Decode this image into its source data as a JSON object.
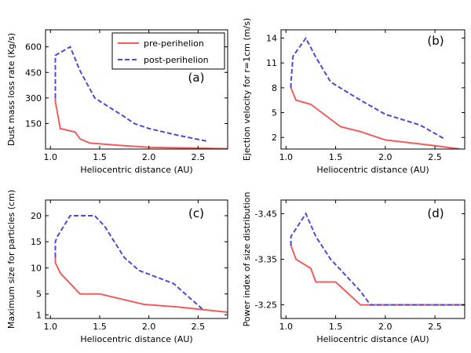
{
  "chart_data": [
    {
      "type": "line",
      "panel": "(a)",
      "xlabel": "Heliocentric distance (AU)",
      "ylabel": "Dust mass loss rate (Kg/s)",
      "xlim": [
        0.95,
        2.8
      ],
      "ylim": [
        0,
        700
      ],
      "xticks": [
        1.0,
        1.5,
        2.0,
        2.5
      ],
      "xtick_labels": [
        "1.0",
        "1.5",
        "2.0",
        "2.5"
      ],
      "yticks": [
        150,
        300,
        450,
        600
      ],
      "ytick_labels": [
        "150",
        "300",
        "450",
        "600"
      ],
      "legend": "top-right",
      "series": [
        {
          "name": "pre-perihelion",
          "color": "#f25c5c",
          "style": "solid",
          "x": [
            1.05,
            1.05,
            1.1,
            1.25,
            1.3,
            1.4,
            1.75,
            2.0,
            2.5,
            2.8
          ],
          "y": [
            310,
            280,
            120,
            100,
            60,
            35,
            20,
            10,
            5,
            2
          ]
        },
        {
          "name": "post-perihelion",
          "color": "#4b4bdb",
          "style": "dashed",
          "x": [
            1.05,
            1.05,
            1.08,
            1.2,
            1.3,
            1.45,
            1.75,
            1.85,
            2.0,
            2.3,
            2.6
          ],
          "y": [
            300,
            550,
            560,
            600,
            460,
            300,
            190,
            150,
            120,
            80,
            45
          ]
        }
      ]
    },
    {
      "type": "line",
      "panel": "(b)",
      "xlabel": "Heliocentric distance (AU)",
      "ylabel": "Ejection velocity for r=1cm (m/s)",
      "xlim": [
        0.95,
        2.8
      ],
      "ylim": [
        0.6,
        15
      ],
      "xticks": [
        1.0,
        1.5,
        2.0,
        2.5
      ],
      "xtick_labels": [
        "1.0",
        "1.5",
        "2.0",
        "2.5"
      ],
      "yticks": [
        2,
        5,
        8,
        11,
        14
      ],
      "ytick_labels": [
        "2",
        "5",
        "8",
        "11",
        "14"
      ],
      "series": [
        {
          "name": "pre-perihelion",
          "color": "#f25c5c",
          "style": "solid",
          "x": [
            1.05,
            1.05,
            1.1,
            1.25,
            1.55,
            1.75,
            2.0,
            2.5,
            2.75
          ],
          "y": [
            8.5,
            8.0,
            6.5,
            6.0,
            3.3,
            2.7,
            1.7,
            1.0,
            0.6
          ]
        },
        {
          "name": "post-perihelion",
          "color": "#4b4bdb",
          "style": "dashed",
          "x": [
            1.05,
            1.05,
            1.07,
            1.2,
            1.3,
            1.45,
            1.75,
            2.0,
            2.35,
            2.6
          ],
          "y": [
            8.0,
            8.5,
            11.8,
            14.0,
            11.7,
            8.7,
            6.5,
            4.8,
            3.5,
            1.8
          ]
        }
      ]
    },
    {
      "type": "line",
      "panel": "(c)",
      "xlabel": "Heliocentric distance (AU)",
      "ylabel": "Maximum size for particles (cm)",
      "xlim": [
        0.95,
        2.8
      ],
      "ylim": [
        0.3,
        23
      ],
      "xticks": [
        1.0,
        1.5,
        2.0,
        2.5
      ],
      "xtick_labels": [
        "1.0",
        "1.5",
        "2.0",
        "2.5"
      ],
      "yticks": [
        1,
        5,
        10,
        15,
        20
      ],
      "ytick_labels": [
        "1",
        "5",
        "10",
        "15",
        "20"
      ],
      "series": [
        {
          "name": "pre-perihelion",
          "color": "#f25c5c",
          "style": "solid",
          "x": [
            1.05,
            1.05,
            1.1,
            1.3,
            1.5,
            1.95,
            2.3,
            2.8
          ],
          "y": [
            13,
            11,
            9,
            5,
            5,
            3,
            2.5,
            1.5
          ]
        },
        {
          "name": "post-perihelion",
          "color": "#4b4bdb",
          "style": "dashed",
          "x": [
            1.05,
            1.05,
            1.07,
            1.2,
            1.45,
            1.55,
            1.75,
            1.9,
            2.25,
            2.55
          ],
          "y": [
            12,
            15,
            16,
            20,
            20,
            18,
            12,
            9.5,
            7,
            2
          ]
        }
      ]
    },
    {
      "type": "line",
      "panel": "(d)",
      "xlabel": "Heliocentric distance (AU)",
      "ylabel": "Power index of size distribution",
      "xlim": [
        0.95,
        2.8
      ],
      "ylim": [
        -3.22,
        -3.48
      ],
      "xticks": [
        1.0,
        1.5,
        2.0,
        2.5
      ],
      "xtick_labels": [
        "1.0",
        "1.5",
        "2.0",
        "2.5"
      ],
      "yticks": [
        -3.45,
        -3.35,
        -3.25
      ],
      "ytick_labels": [
        "-3.45",
        "-3.35",
        "-3.25"
      ],
      "series": [
        {
          "name": "pre-perihelion",
          "color": "#f25c5c",
          "style": "solid",
          "x": [
            1.05,
            1.05,
            1.1,
            1.25,
            1.3,
            1.5,
            1.75,
            2.0,
            2.8
          ],
          "y": [
            -3.39,
            -3.38,
            -3.35,
            -3.33,
            -3.3,
            -3.3,
            -3.25,
            -3.25,
            -3.25
          ]
        },
        {
          "name": "post-perihelion",
          "color": "#4b4bdb",
          "style": "dashed",
          "x": [
            1.05,
            1.05,
            1.08,
            1.2,
            1.3,
            1.45,
            1.75,
            1.85,
            2.0,
            2.8
          ],
          "y": [
            -3.38,
            -3.4,
            -3.41,
            -3.45,
            -3.4,
            -3.35,
            -3.28,
            -3.25,
            -3.25,
            -3.25
          ]
        }
      ]
    }
  ]
}
